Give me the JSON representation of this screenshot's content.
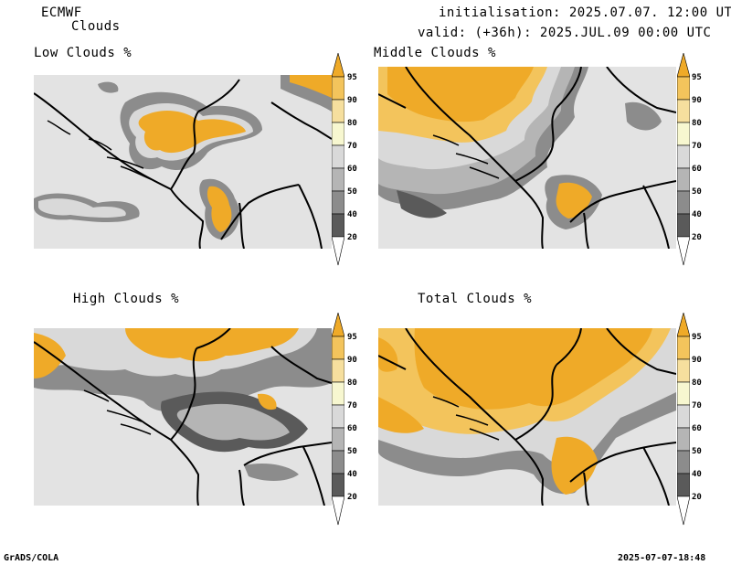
{
  "header": {
    "model": "ECMWF",
    "product": "Clouds",
    "init": "initialisation: 2025.07.07. 12:00 UTC",
    "valid": "valid: (+36h): 2025.JUL.09 00:00 UTC"
  },
  "panels": [
    {
      "title": "Low Clouds %"
    },
    {
      "title": "Middle Clouds %"
    },
    {
      "title": "High Clouds %"
    },
    {
      "title": "Total Clouds %"
    }
  ],
  "colorbar": {
    "levels": [
      "95",
      "90",
      "80",
      "70",
      "60",
      "50",
      "40",
      "20"
    ],
    "colors": [
      "#efaa28",
      "#f3c45c",
      "#f6df9e",
      "#f7f7d0",
      "#d9d9d9",
      "#b5b5b5",
      "#8c8c8c",
      "#5a5a5a"
    ],
    "below_color": "#e3e3e3"
  },
  "footer": {
    "left": "GrADS/COLA",
    "right": "2025-07-07-18:48"
  }
}
